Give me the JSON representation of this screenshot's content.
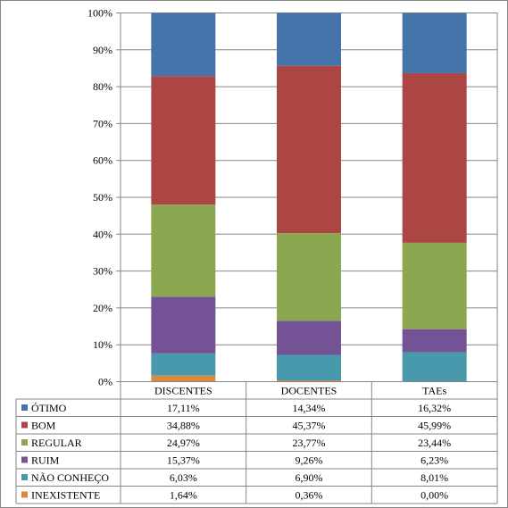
{
  "chart_data": {
    "type": "bar",
    "stacked": true,
    "percent_stacked": true,
    "categories": [
      "DISCENTES",
      "DOCENTES",
      "TAEs"
    ],
    "series": [
      {
        "name": "INEXISTENTE",
        "color": "#DD8A3F",
        "values": [
          1.64,
          0.36,
          0.0
        ],
        "labels": [
          "1,64%",
          "0,36%",
          "0,00%"
        ]
      },
      {
        "name": "NÃO CONHEÇO",
        "color": "#4799AB",
        "values": [
          6.03,
          6.9,
          8.01
        ],
        "labels": [
          "6,03%",
          "6,90%",
          "8,01%"
        ]
      },
      {
        "name": "RUIM",
        "color": "#735396",
        "values": [
          15.37,
          9.26,
          6.23
        ],
        "labels": [
          "15,37%",
          "9,26%",
          "6,23%"
        ]
      },
      {
        "name": "REGULAR",
        "color": "#8BA750",
        "values": [
          24.97,
          23.77,
          23.44
        ],
        "labels": [
          "24,97%",
          "23,77%",
          "23,44%"
        ]
      },
      {
        "name": "BOM",
        "color": "#AB4644",
        "values": [
          34.88,
          45.37,
          45.99
        ],
        "labels": [
          "34,88%",
          "45,37%",
          "45,99%"
        ]
      },
      {
        "name": "ÓTIMO",
        "color": "#4474AA",
        "values": [
          17.11,
          14.34,
          16.32
        ],
        "labels": [
          "17,11%",
          "14,34%",
          "16,32%"
        ]
      }
    ],
    "table_row_order": [
      "ÓTIMO",
      "BOM",
      "REGULAR",
      "RUIM",
      "NÃO CONHEÇO",
      "INEXISTENTE"
    ],
    "yticks": [
      "0%",
      "10%",
      "20%",
      "30%",
      "40%",
      "50%",
      "60%",
      "70%",
      "80%",
      "90%",
      "100%"
    ],
    "ylim": [
      0,
      100
    ],
    "grid": true,
    "legend": "data-table"
  }
}
